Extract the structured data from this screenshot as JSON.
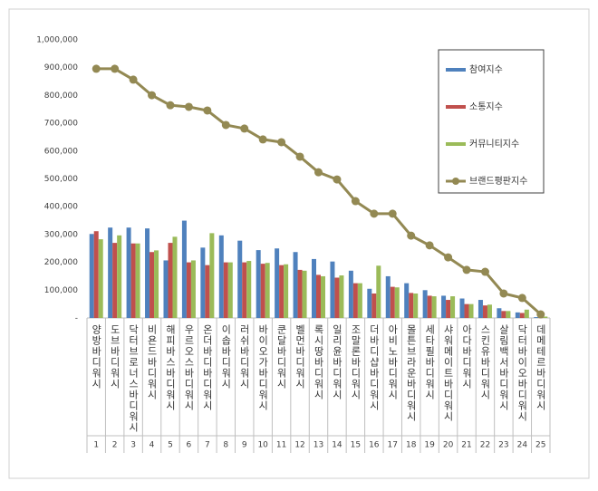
{
  "chart_data": {
    "type": "bar",
    "categories": [
      "양방바디워시",
      "도브바디워시",
      "닥터브로너스바디워시",
      "비욘드바디워시",
      "해피바스바디워시",
      "우르오스바디워시",
      "온더바디바디워시",
      "이솝바디워시",
      "러쉬바디워시",
      "바이오가바디워시",
      "쿤달바디워시",
      "벨먼바디워시",
      "록시땅바디워시",
      "일리윤바디워시",
      "조말론바디워시",
      "더바디샵바디워시",
      "아비노바디워시",
      "몰튼브라운바디워시",
      "세타필바디워시",
      "샤워메이트바디워시",
      "아다바디워시",
      "스킨유바디워시",
      "살림백서바디워시",
      "닥터바이오바디워시",
      "데메테르바디워시"
    ],
    "ranks": [
      1,
      2,
      3,
      4,
      5,
      6,
      7,
      8,
      9,
      10,
      11,
      12,
      13,
      14,
      15,
      16,
      17,
      18,
      19,
      20,
      21,
      22,
      23,
      24,
      25
    ],
    "series": [
      {
        "name": "참여지수",
        "color": "#4f81bd",
        "type": "bar",
        "values": [
          302000,
          325000,
          325000,
          322000,
          207000,
          350000,
          253000,
          297000,
          278000,
          244000,
          250000,
          237000,
          212000,
          203000,
          170000,
          105000,
          150000,
          125000,
          100000,
          80000,
          70000,
          65000,
          35000,
          20000,
          3000
        ]
      },
      {
        "name": "소통지수",
        "color": "#c0504d",
        "type": "bar",
        "values": [
          312000,
          270000,
          268000,
          237000,
          270000,
          200000,
          190000,
          200000,
          200000,
          195000,
          190000,
          173000,
          155000,
          145000,
          125000,
          88000,
          112000,
          90000,
          80000,
          65000,
          50000,
          45000,
          25000,
          18000,
          2000
        ]
      },
      {
        "name": "커뮤니티지수",
        "color": "#9bbb59",
        "type": "bar",
        "values": [
          283000,
          297000,
          268000,
          243000,
          292000,
          207000,
          305000,
          200000,
          205000,
          198000,
          193000,
          170000,
          150000,
          153000,
          125000,
          188000,
          110000,
          88000,
          78000,
          78000,
          50000,
          48000,
          25000,
          30000,
          5000
        ]
      },
      {
        "name": "브랜드평판지수",
        "color": "#938953",
        "type": "line",
        "values": [
          896000,
          896000,
          857000,
          801000,
          765000,
          759000,
          746000,
          694000,
          681000,
          642000,
          632000,
          580000,
          524000,
          498000,
          420000,
          375000,
          375000,
          296000,
          261000,
          218000,
          173000,
          166000,
          88000,
          72000,
          13000
        ]
      }
    ],
    "ylim": [
      0,
      1000000
    ],
    "yticks": [
      {
        "value": 0,
        "label": "-"
      },
      {
        "value": 100000,
        "label": "100,000"
      },
      {
        "value": 200000,
        "label": "200,000"
      },
      {
        "value": 300000,
        "label": "300,000"
      },
      {
        "value": 400000,
        "label": "400,000"
      },
      {
        "value": 500000,
        "label": "500,000"
      },
      {
        "value": 600000,
        "label": "600,000"
      },
      {
        "value": 700000,
        "label": "700,000"
      },
      {
        "value": 800000,
        "label": "800,000"
      },
      {
        "value": 900000,
        "label": "900,000"
      },
      {
        "value": 1000000,
        "label": "1,000,000"
      }
    ],
    "grid": false,
    "legend": "upper right"
  }
}
